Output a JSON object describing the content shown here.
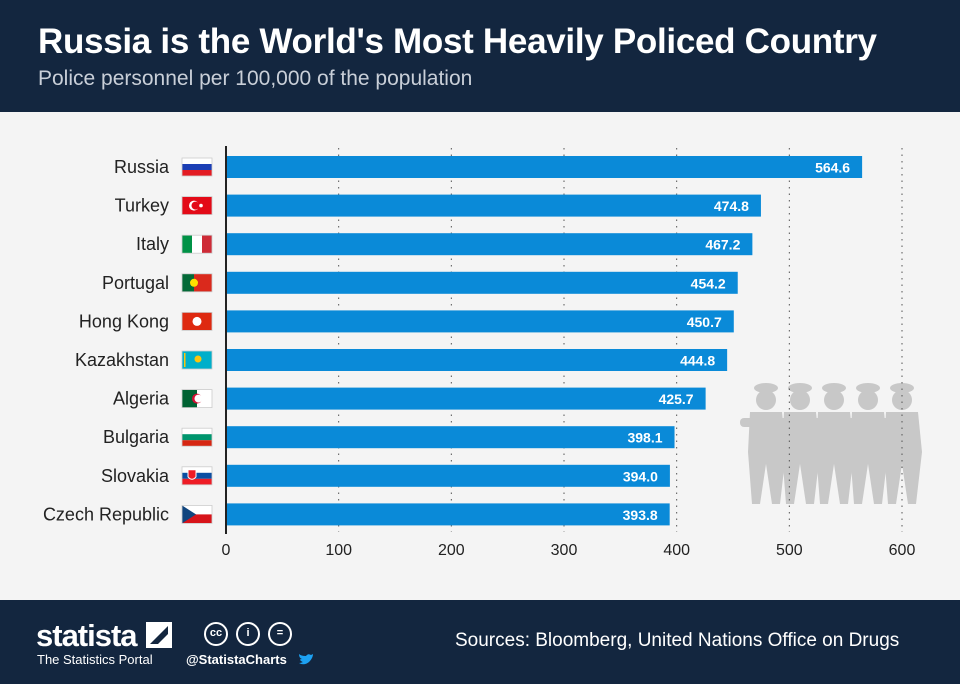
{
  "header": {
    "title": "Russia is the World's Most Heavily Policed Country",
    "subtitle": "Police personnel per 100,000 of the population"
  },
  "footer": {
    "logo": "statista",
    "tagline": "The Statistics Portal",
    "handle": "@StatistaCharts",
    "sources": "Sources: Bloomberg, United Nations Office on Drugs",
    "license_icons": [
      "cc-icon",
      "attribution-icon",
      "no-derivatives-icon"
    ]
  },
  "colors": {
    "bar": "#0a8ad8",
    "header": "#13263f",
    "background": "#f4f4f4",
    "illustration": "#c8c8c8"
  },
  "chart_data": {
    "type": "bar",
    "orientation": "horizontal",
    "categories": [
      "Russia",
      "Turkey",
      "Italy",
      "Portugal",
      "Hong Kong",
      "Kazakhstan",
      "Algeria",
      "Bulgaria",
      "Slovakia",
      "Czech Republic"
    ],
    "flags": [
      "russia",
      "turkey",
      "italy",
      "portugal",
      "hong-kong",
      "kazakhstan",
      "algeria",
      "bulgaria",
      "slovakia",
      "czech-republic"
    ],
    "values": [
      564.6,
      474.8,
      467.2,
      454.2,
      450.7,
      444.8,
      425.7,
      398.1,
      394.0,
      393.8
    ],
    "value_labels": [
      "564.6",
      "474.8",
      "467.2",
      "454.2",
      "450.7",
      "444.8",
      "425.7",
      "398.1",
      "394.0",
      "393.8"
    ],
    "xlim": [
      0,
      600
    ],
    "xticks": [
      "0",
      "100",
      "200",
      "300",
      "400",
      "500",
      "600"
    ],
    "grid": "vertical dotted",
    "title": "",
    "xlabel": "",
    "ylabel": ""
  }
}
